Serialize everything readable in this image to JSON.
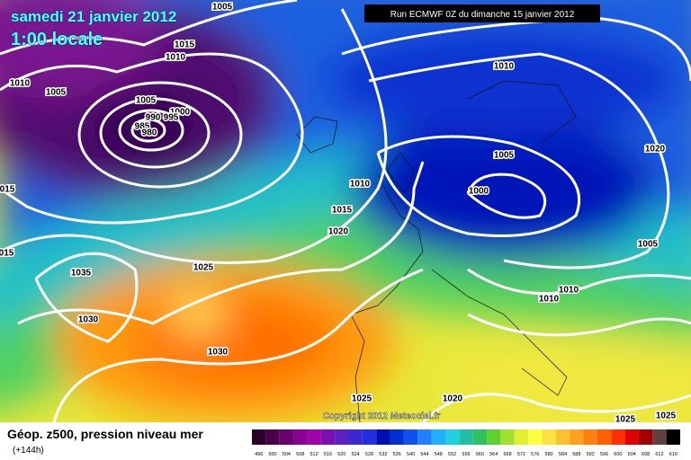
{
  "header": {
    "date": "samedi 21 janvier 2012",
    "time": "1:00 locale",
    "run": "Run ECMWF 0Z du dimanche 15 janvier 2012"
  },
  "copyright": "Copyright 2012 Meteociel.fr",
  "footer": {
    "title": "Géop. z500, pression niveau mer",
    "lead": "(+144h)"
  },
  "isobar_labels": [
    "1005",
    "1015",
    "1010",
    "1010",
    "1005",
    "1005",
    "1000",
    "990",
    "995",
    "985",
    "980",
    "1010",
    "1020",
    "1005",
    "1000",
    "1010",
    "1015",
    "1020",
    "1005",
    "1025",
    "1035",
    "1030",
    "1030",
    "1010",
    "1010",
    "1025",
    "1020",
    "1025",
    "1025",
    "015",
    "015"
  ],
  "legend": {
    "values": [
      496,
      500,
      504,
      508,
      512,
      516,
      520,
      524,
      528,
      532,
      536,
      540,
      544,
      548,
      552,
      556,
      560,
      564,
      568,
      572,
      576,
      580,
      584,
      588,
      592,
      596,
      600,
      604,
      608,
      612,
      616
    ],
    "colors": [
      "#2a0028",
      "#4a0048",
      "#6a0070",
      "#8a0090",
      "#a000a8",
      "#7a10b0",
      "#5a20c0",
      "#3a28d0",
      "#2030e0",
      "#0010b0",
      "#0030d0",
      "#1050f0",
      "#2080ff",
      "#20b0ff",
      "#20d0e0",
      "#20c0a0",
      "#30c060",
      "#60d030",
      "#a0e030",
      "#e0f030",
      "#ffff40",
      "#ffe040",
      "#ffc030",
      "#ffa020",
      "#ff8010",
      "#ff6000",
      "#ff3000",
      "#e00000",
      "#a00000",
      "#604040",
      "#000000"
    ]
  }
}
